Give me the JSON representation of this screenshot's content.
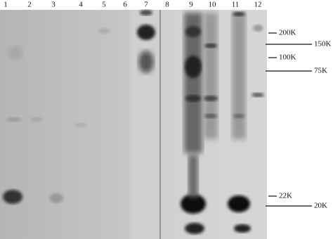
{
  "lanes": [
    "1",
    "2",
    "3",
    "4",
    "5",
    "6",
    "7",
    "8",
    "9",
    "10",
    "11",
    "12"
  ],
  "markers": [
    "200K",
    "150K",
    "100K",
    "75K",
    "22K",
    "20K"
  ]
}
